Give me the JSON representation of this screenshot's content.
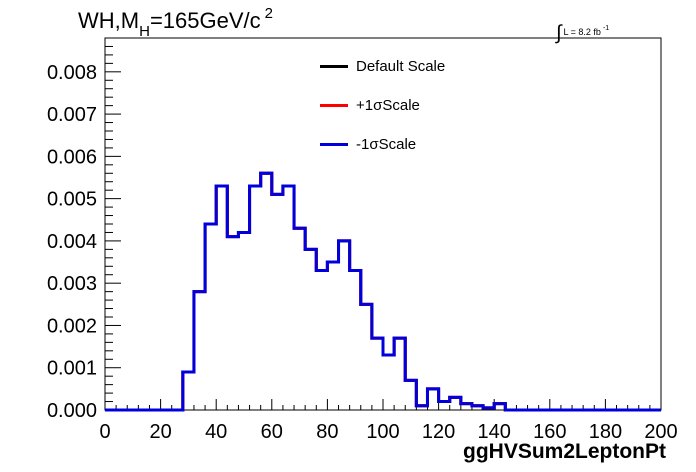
{
  "title": {
    "prefix": "WH,M",
    "subscript": "H",
    "suffix": "=165GeV/c",
    "superscript": "2"
  },
  "lumi": {
    "integral": "∫",
    "text": "L = 8.2 fb",
    "superscript": "-1"
  },
  "chart_data": {
    "type": "line",
    "xlabel": "ggHVSum2LeptonPt",
    "ylabel": "",
    "xlim": [
      0,
      200
    ],
    "ylim": [
      0,
      0.0088
    ],
    "xticks": [
      0,
      20,
      40,
      60,
      80,
      100,
      120,
      140,
      160,
      180,
      200
    ],
    "xtick_labels": [
      "0",
      "20",
      "40",
      "60",
      "80",
      "100",
      "120",
      "140",
      "160",
      "180",
      "200"
    ],
    "yticks": [
      0,
      0.001,
      0.002,
      0.003,
      0.004,
      0.005,
      0.006,
      0.007,
      0.008
    ],
    "ytick_labels": [
      "0.000",
      "0.001",
      "0.002",
      "0.003",
      "0.004",
      "0.005",
      "0.006",
      "0.007",
      "0.008"
    ],
    "bin_width": 4,
    "bin_edges": [
      0,
      4,
      8,
      12,
      16,
      20,
      24,
      28,
      32,
      36,
      40,
      44,
      48,
      52,
      56,
      60,
      64,
      68,
      72,
      76,
      80,
      84,
      88,
      92,
      96,
      100,
      104,
      108,
      112,
      116,
      120,
      124,
      128,
      132,
      136,
      140,
      144,
      148,
      152,
      156,
      160,
      164,
      168,
      172,
      176,
      180,
      184,
      188,
      192,
      196,
      200
    ],
    "series": [
      {
        "name": "Default Scale",
        "color": "#000000",
        "values": [
          0,
          0,
          0,
          0,
          0,
          0,
          0,
          0.0009,
          0.0028,
          0.0044,
          0.0053,
          0.0041,
          0.0042,
          0.0053,
          0.0056,
          0.0051,
          0.0053,
          0.0043,
          0.0038,
          0.0033,
          0.0035,
          0.004,
          0.0033,
          0.0025,
          0.0017,
          0.0013,
          0.0017,
          0.0007,
          0.0001,
          0.0005,
          0.0002,
          0.0003,
          0.00015,
          0.0001,
          5e-05,
          0.00015,
          0,
          0,
          0,
          0,
          0,
          0,
          0,
          0,
          0,
          0,
          0,
          0,
          0,
          0
        ]
      },
      {
        "name": "+1σScale",
        "color": "#ff0000",
        "values": [
          0,
          0,
          0,
          0,
          0,
          0,
          0,
          0.0009,
          0.0028,
          0.0044,
          0.0053,
          0.0041,
          0.0042,
          0.0053,
          0.0056,
          0.0051,
          0.0053,
          0.0043,
          0.0038,
          0.0033,
          0.0035,
          0.004,
          0.0033,
          0.0025,
          0.0017,
          0.0013,
          0.0017,
          0.0007,
          0.0001,
          0.0005,
          0.0002,
          0.0003,
          0.00015,
          0.0001,
          5e-05,
          0.00015,
          0,
          0,
          0,
          0,
          0,
          0,
          0,
          0,
          0,
          0,
          0,
          0,
          0,
          0
        ]
      },
      {
        "name": "-1σScale",
        "color": "#0000dd",
        "values": [
          0,
          0,
          0,
          0,
          0,
          0,
          0,
          0.0009,
          0.0028,
          0.0044,
          0.0053,
          0.0041,
          0.0042,
          0.0053,
          0.0056,
          0.0051,
          0.0053,
          0.0043,
          0.0038,
          0.0033,
          0.0035,
          0.004,
          0.0033,
          0.0025,
          0.0017,
          0.0013,
          0.0017,
          0.0007,
          0.0001,
          0.0005,
          0.0002,
          0.0003,
          0.00015,
          0.0001,
          5e-05,
          0.00015,
          0,
          0,
          0,
          0,
          0,
          0,
          0,
          0,
          0,
          0,
          0,
          0,
          0,
          0
        ]
      }
    ],
    "legend_placement": "top-center",
    "grid": false
  }
}
